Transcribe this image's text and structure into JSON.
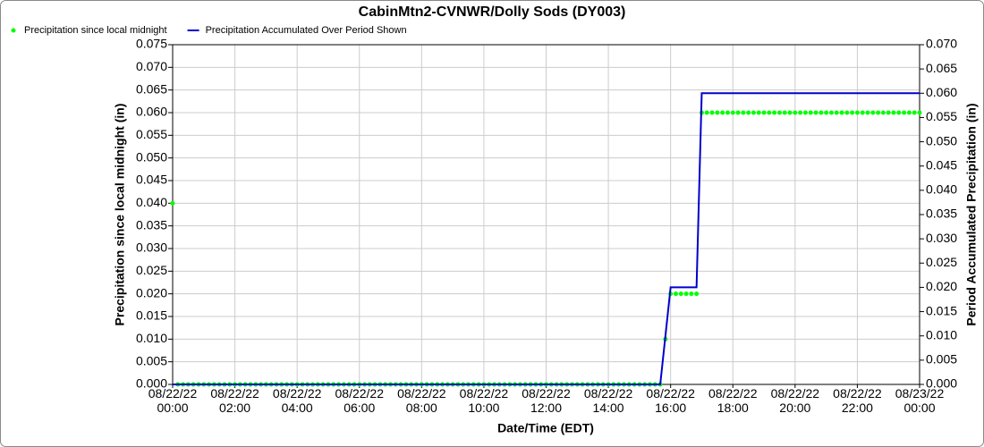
{
  "chart_data": {
    "type": "line",
    "title": "CabinMtn2-CVNWR/Dolly Sods (DY003)",
    "x_label": "Date/Time (EDT)",
    "y_label": "Precipitation since local midnight (in)",
    "y2_label": "Period Accumulated Precipitation (in)",
    "grid": true,
    "legend": "top-left",
    "xlim": [
      0,
      1440
    ],
    "xticks": [
      {
        "value": 0,
        "label": "08/22/22\n00:00"
      },
      {
        "value": 120,
        "label": "08/22/22\n02:00"
      },
      {
        "value": 240,
        "label": "08/22/22\n04:00"
      },
      {
        "value": 360,
        "label": "08/22/22\n06:00"
      },
      {
        "value": 480,
        "label": "08/22/22\n08:00"
      },
      {
        "value": 600,
        "label": "08/22/22\n10:00"
      },
      {
        "value": 720,
        "label": "08/22/22\n12:00"
      },
      {
        "value": 840,
        "label": "08/22/22\n14:00"
      },
      {
        "value": 960,
        "label": "08/22/22\n16:00"
      },
      {
        "value": 1080,
        "label": "08/22/22\n18:00"
      },
      {
        "value": 1200,
        "label": "08/22/22\n20:00"
      },
      {
        "value": 1320,
        "label": "08/22/22\n22:00"
      },
      {
        "value": 1440,
        "label": "08/23/22\n00:00"
      }
    ],
    "ylim": [
      0,
      0.075
    ],
    "yticks": [
      {
        "value": 0,
        "label": "0.000"
      },
      {
        "value": 0.005,
        "label": "0.005"
      },
      {
        "value": 0.01,
        "label": "0.010"
      },
      {
        "value": 0.015,
        "label": "0.015"
      },
      {
        "value": 0.02,
        "label": "0.020"
      },
      {
        "value": 0.025,
        "label": "0.025"
      },
      {
        "value": 0.03,
        "label": "0.030"
      },
      {
        "value": 0.035,
        "label": "0.035"
      },
      {
        "value": 0.04,
        "label": "0.040"
      },
      {
        "value": 0.045,
        "label": "0.045"
      },
      {
        "value": 0.05,
        "label": "0.050"
      },
      {
        "value": 0.055,
        "label": "0.055"
      },
      {
        "value": 0.06,
        "label": "0.060"
      },
      {
        "value": 0.065,
        "label": "0.065"
      },
      {
        "value": 0.07,
        "label": "0.070"
      },
      {
        "value": 0.075,
        "label": "0.075"
      }
    ],
    "y2lim": [
      0,
      0.07
    ],
    "y2ticks": [
      {
        "value": 0,
        "label": "0.000"
      },
      {
        "value": 0.005,
        "label": "0.005"
      },
      {
        "value": 0.01,
        "label": "0.010"
      },
      {
        "value": 0.015,
        "label": "0.015"
      },
      {
        "value": 0.02,
        "label": "0.020"
      },
      {
        "value": 0.025,
        "label": "0.025"
      },
      {
        "value": 0.03,
        "label": "0.030"
      },
      {
        "value": 0.035,
        "label": "0.035"
      },
      {
        "value": 0.04,
        "label": "0.040"
      },
      {
        "value": 0.045,
        "label": "0.045"
      },
      {
        "value": 0.05,
        "label": "0.050"
      },
      {
        "value": 0.055,
        "label": "0.055"
      },
      {
        "value": 0.06,
        "label": "0.060"
      },
      {
        "value": 0.065,
        "label": "0.065"
      },
      {
        "value": 0.07,
        "label": "0.070"
      }
    ],
    "x": [
      0,
      10,
      20,
      30,
      40,
      50,
      60,
      70,
      80,
      90,
      100,
      110,
      120,
      130,
      140,
      150,
      160,
      170,
      180,
      190,
      200,
      210,
      220,
      230,
      240,
      250,
      260,
      270,
      280,
      290,
      300,
      310,
      320,
      330,
      340,
      350,
      360,
      370,
      380,
      390,
      400,
      410,
      420,
      430,
      440,
      450,
      460,
      470,
      480,
      490,
      500,
      510,
      520,
      530,
      540,
      550,
      560,
      570,
      580,
      590,
      600,
      610,
      620,
      630,
      640,
      650,
      660,
      670,
      680,
      690,
      700,
      710,
      720,
      730,
      740,
      750,
      760,
      770,
      780,
      790,
      800,
      810,
      820,
      830,
      840,
      850,
      860,
      870,
      880,
      890,
      900,
      910,
      920,
      930,
      940,
      950,
      960,
      970,
      980,
      990,
      1000,
      1010,
      1020,
      1030,
      1040,
      1050,
      1060,
      1070,
      1080,
      1090,
      1100,
      1110,
      1120,
      1130,
      1140,
      1150,
      1160,
      1170,
      1180,
      1190,
      1200,
      1210,
      1220,
      1230,
      1240,
      1250,
      1260,
      1270,
      1280,
      1290,
      1300,
      1310,
      1320,
      1330,
      1340,
      1350,
      1360,
      1370,
      1380,
      1390,
      1400,
      1410,
      1420,
      1430,
      1440
    ],
    "series": [
      {
        "name": "Precipitation since local midnight",
        "color": "#00ff00",
        "style": "dots",
        "values": [
          0.04,
          0,
          0,
          0,
          0,
          0,
          0,
          0,
          0,
          0,
          0,
          0,
          0,
          0,
          0,
          0,
          0,
          0,
          0,
          0,
          0,
          0,
          0,
          0,
          0,
          0,
          0,
          0,
          0,
          0,
          0,
          0,
          0,
          0,
          0,
          0,
          0,
          0,
          0,
          0,
          0,
          0,
          0,
          0,
          0,
          0,
          0,
          0,
          0,
          0,
          0,
          0,
          0,
          0,
          0,
          0,
          0,
          0,
          0,
          0,
          0,
          0,
          0,
          0,
          0,
          0,
          0,
          0,
          0,
          0,
          0,
          0,
          0,
          0,
          0,
          0,
          0,
          0,
          0,
          0,
          0,
          0,
          0,
          0,
          0,
          0,
          0,
          0,
          0,
          0,
          0,
          0,
          0,
          0,
          0,
          0.01,
          0.02,
          0.02,
          0.02,
          0.02,
          0.02,
          0.02,
          0.06,
          0.06,
          0.06,
          0.06,
          0.06,
          0.06,
          0.06,
          0.06,
          0.06,
          0.06,
          0.06,
          0.06,
          0.06,
          0.06,
          0.06,
          0.06,
          0.06,
          0.06,
          0.06,
          0.06,
          0.06,
          0.06,
          0.06,
          0.06,
          0.06,
          0.06,
          0.06,
          0.06,
          0.06,
          0.06,
          0.06,
          0.06,
          0.06,
          0.06,
          0.06,
          0.06,
          0.06,
          0.06,
          0.06,
          0.06,
          0.06,
          0.06,
          0.06
        ]
      },
      {
        "name": "Precipitation Accumulated Over Period Shown",
        "color": "#0000cc",
        "style": "line",
        "axis": "y2",
        "values": [
          0,
          0,
          0,
          0,
          0,
          0,
          0,
          0,
          0,
          0,
          0,
          0,
          0,
          0,
          0,
          0,
          0,
          0,
          0,
          0,
          0,
          0,
          0,
          0,
          0,
          0,
          0,
          0,
          0,
          0,
          0,
          0,
          0,
          0,
          0,
          0,
          0,
          0,
          0,
          0,
          0,
          0,
          0,
          0,
          0,
          0,
          0,
          0,
          0,
          0,
          0,
          0,
          0,
          0,
          0,
          0,
          0,
          0,
          0,
          0,
          0,
          0,
          0,
          0,
          0,
          0,
          0,
          0,
          0,
          0,
          0,
          0,
          0,
          0,
          0,
          0,
          0,
          0,
          0,
          0,
          0,
          0,
          0,
          0,
          0,
          0,
          0,
          0,
          0,
          0,
          0,
          0,
          0,
          0,
          0,
          0.01,
          0.02,
          0.02,
          0.02,
          0.02,
          0.02,
          0.02,
          0.06,
          0.06,
          0.06,
          0.06,
          0.06,
          0.06,
          0.06,
          0.06,
          0.06,
          0.06,
          0.06,
          0.06,
          0.06,
          0.06,
          0.06,
          0.06,
          0.06,
          0.06,
          0.06,
          0.06,
          0.06,
          0.06,
          0.06,
          0.06,
          0.06,
          0.06,
          0.06,
          0.06,
          0.06,
          0.06,
          0.06,
          0.06,
          0.06,
          0.06,
          0.06,
          0.06,
          0.06,
          0.06,
          0.06,
          0.06,
          0.06,
          0.06,
          0.06
        ]
      }
    ]
  }
}
